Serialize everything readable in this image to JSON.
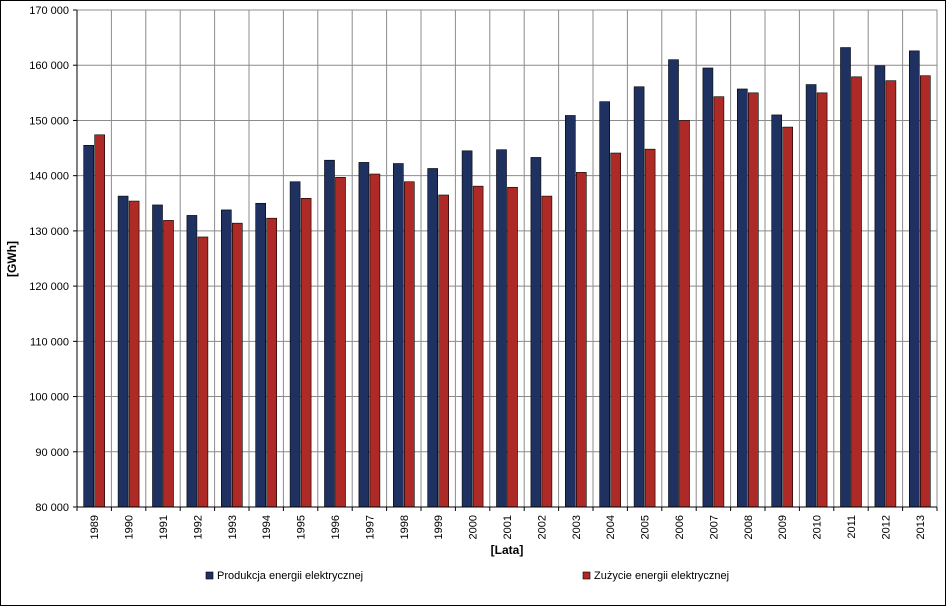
{
  "chart_data": {
    "type": "bar",
    "title": "",
    "xlabel": "[Lata]",
    "ylabel": "[GWh]",
    "ylim": [
      80000,
      170000
    ],
    "ytick_step": 10000,
    "grid": true,
    "legend_position": "bottom",
    "categories": [
      "1989",
      "1990",
      "1991",
      "1992",
      "1993",
      "1994",
      "1995",
      "1996",
      "1997",
      "1998",
      "1999",
      "2000",
      "2001",
      "2002",
      "2003",
      "2004",
      "2005",
      "2006",
      "2007",
      "2008",
      "2009",
      "2010",
      "2011",
      "2012",
      "2013"
    ],
    "series": [
      {
        "name": "Produkcja energii elektrycznej",
        "color": "#1f3160",
        "values": [
          145500,
          136300,
          134700,
          132800,
          133800,
          135000,
          138900,
          142800,
          142400,
          142200,
          141300,
          144500,
          144700,
          143300,
          150900,
          153400,
          156100,
          161000,
          159500,
          155700,
          151000,
          156500,
          163200,
          159900,
          162600
        ]
      },
      {
        "name": "Zużycie energii elektrycznej",
        "color": "#ad2a26",
        "values": [
          147400,
          135400,
          131900,
          128900,
          131400,
          132300,
          135900,
          139700,
          140300,
          138900,
          136500,
          138100,
          137900,
          136300,
          140600,
          144100,
          144800,
          150000,
          154300,
          155000,
          148800,
          155000,
          157900,
          157200,
          158100
        ]
      }
    ],
    "yticks": [
      "80 000",
      "90 000",
      "100 000",
      "110 000",
      "120 000",
      "130 000",
      "140 000",
      "150 000",
      "160 000",
      "170 000"
    ]
  }
}
